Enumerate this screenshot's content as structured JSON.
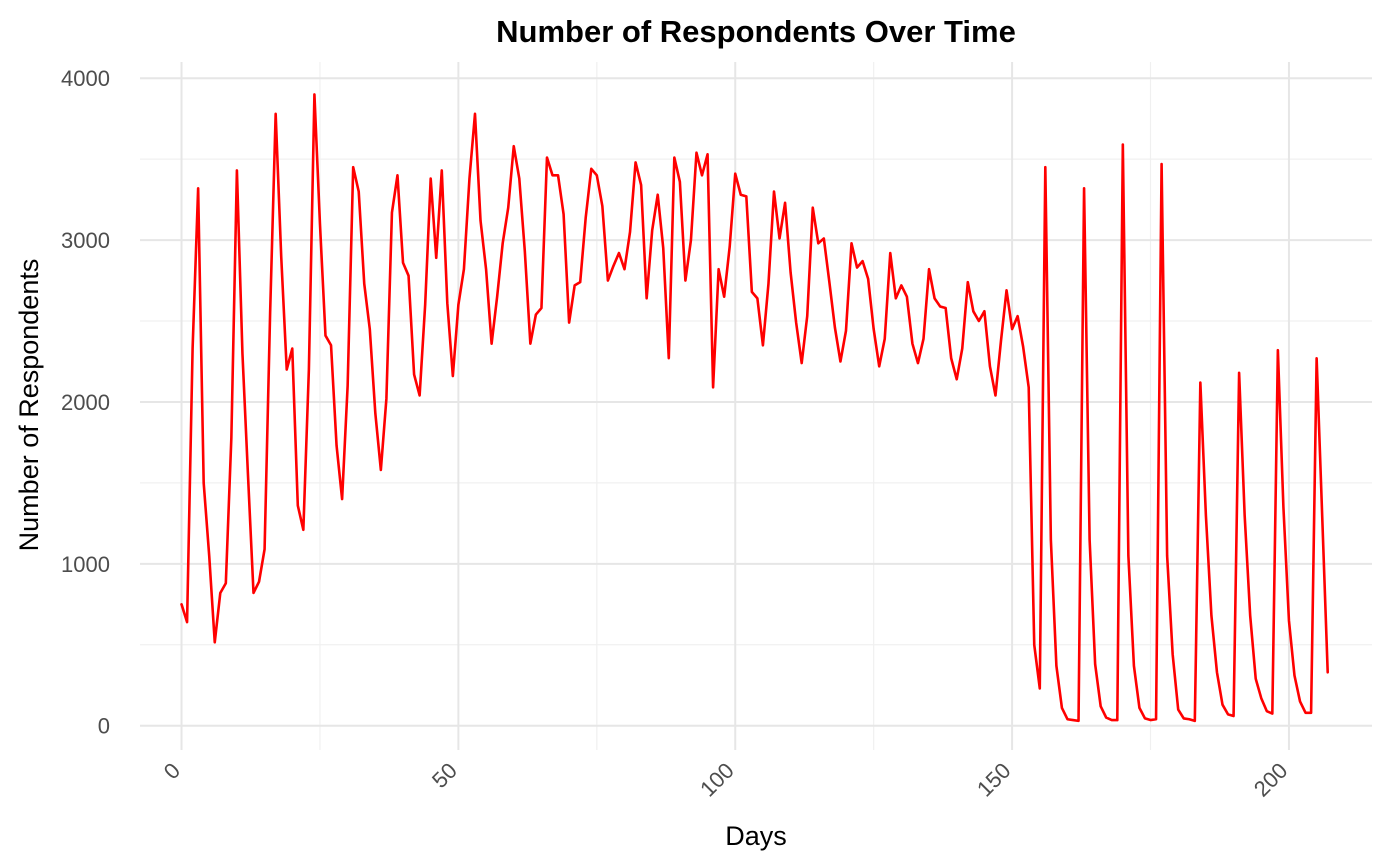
{
  "chart_data": {
    "type": "line",
    "title": "Number of Respondents Over Time",
    "xlabel": "Days",
    "ylabel": "Number of Respondents",
    "xlim": [
      -7.5,
      215
    ],
    "ylim": [
      -150,
      4100
    ],
    "x_ticks": [
      0,
      50,
      100,
      150,
      200
    ],
    "x_tick_labels": [
      "0",
      "50",
      "100",
      "150",
      "200"
    ],
    "y_ticks": [
      0,
      1000,
      2000,
      3000,
      4000
    ],
    "y_tick_labels": [
      "0",
      "1000",
      "2000",
      "3000",
      "4000"
    ],
    "grid": true,
    "legend": "none",
    "series": [
      {
        "name": "Respondents",
        "color": "#ff0000",
        "x": [
          0,
          1,
          2,
          3,
          4,
          5,
          6,
          7,
          8,
          9,
          10,
          11,
          12,
          13,
          14,
          15,
          16,
          17,
          18,
          19,
          20,
          21,
          22,
          23,
          24,
          25,
          26,
          27,
          28,
          29,
          30,
          31,
          32,
          33,
          34,
          35,
          36,
          37,
          38,
          39,
          40,
          41,
          42,
          43,
          44,
          45,
          46,
          47,
          48,
          49,
          50,
          51,
          52,
          53,
          54,
          55,
          56,
          57,
          58,
          59,
          60,
          61,
          62,
          63,
          64,
          65,
          66,
          67,
          68,
          69,
          70,
          71,
          72,
          73,
          74,
          75,
          76,
          77,
          78,
          79,
          80,
          81,
          82,
          83,
          84,
          85,
          86,
          87,
          88,
          89,
          90,
          91,
          92,
          93,
          94,
          95,
          96,
          97,
          98,
          99,
          100,
          101,
          102,
          103,
          104,
          105,
          106,
          107,
          108,
          109,
          110,
          111,
          112,
          113,
          114,
          115,
          116,
          117,
          118,
          119,
          120,
          121,
          122,
          123,
          124,
          125,
          126,
          127,
          128,
          129,
          130,
          131,
          132,
          133,
          134,
          135,
          136,
          137,
          138,
          139,
          140,
          141,
          142,
          143,
          144,
          145,
          146,
          147,
          148,
          149,
          150,
          151,
          152,
          153,
          154,
          155,
          156,
          157,
          158,
          159,
          160,
          161,
          162,
          163,
          164,
          165,
          166,
          167,
          168,
          169,
          170,
          171,
          172,
          173,
          174,
          175,
          176,
          177,
          178,
          179,
          180,
          181,
          182,
          183,
          184,
          185,
          186,
          187,
          188,
          189,
          190,
          191,
          192,
          193,
          194,
          195,
          196,
          197,
          198,
          199,
          200,
          201,
          202,
          203,
          204,
          205,
          206,
          207
        ],
        "values": [
          750,
          640,
          2330,
          3320,
          1500,
          1050,
          515,
          820,
          880,
          1780,
          3430,
          2300,
          1550,
          820,
          890,
          1090,
          2550,
          3780,
          2900,
          2200,
          2330,
          1360,
          1210,
          2200,
          3900,
          3100,
          2410,
          2350,
          1730,
          1400,
          2100,
          3450,
          3300,
          2730,
          2450,
          1930,
          1580,
          2020,
          3170,
          3400,
          2860,
          2780,
          2170,
          2040,
          2600,
          3380,
          2890,
          3430,
          2610,
          2160,
          2600,
          2820,
          3380,
          3780,
          3120,
          2820,
          2360,
          2650,
          2980,
          3200,
          3580,
          3380,
          2930,
          2360,
          2540,
          2580,
          3510,
          3400,
          3400,
          3160,
          2490,
          2720,
          2740,
          3140,
          3440,
          3400,
          3210,
          2750,
          2840,
          2920,
          2820,
          3050,
          3480,
          3340,
          2640,
          3060,
          3280,
          2950,
          2270,
          3510,
          3360,
          2750,
          3000,
          3540,
          3400,
          3530,
          2090,
          2820,
          2650,
          2960,
          3410,
          3280,
          3270,
          2680,
          2640,
          2350,
          2730,
          3300,
          3010,
          3230,
          2800,
          2490,
          2240,
          2530,
          3200,
          2980,
          3010,
          2740,
          2460,
          2250,
          2440,
          2980,
          2830,
          2870,
          2760,
          2450,
          2220,
          2390,
          2920,
          2640,
          2720,
          2650,
          2360,
          2240,
          2390,
          2820,
          2640,
          2590,
          2580,
          2270,
          2140,
          2330,
          2740,
          2560,
          2500,
          2560,
          2220,
          2040,
          2380,
          2690,
          2450,
          2530,
          2340,
          2090,
          500,
          230,
          3450,
          1150,
          370,
          110,
          40,
          35,
          30,
          3320,
          1150,
          380,
          120,
          50,
          35,
          35,
          3590,
          1050,
          370,
          110,
          45,
          35,
          40,
          3470,
          1050,
          440,
          100,
          45,
          40,
          30,
          2120,
          1300,
          680,
          330,
          130,
          70,
          60,
          2180,
          1300,
          680,
          290,
          170,
          90,
          75,
          2320,
          1350,
          650,
          310,
          150,
          80,
          80,
          2270,
          1300,
          330
        ]
      }
    ]
  }
}
